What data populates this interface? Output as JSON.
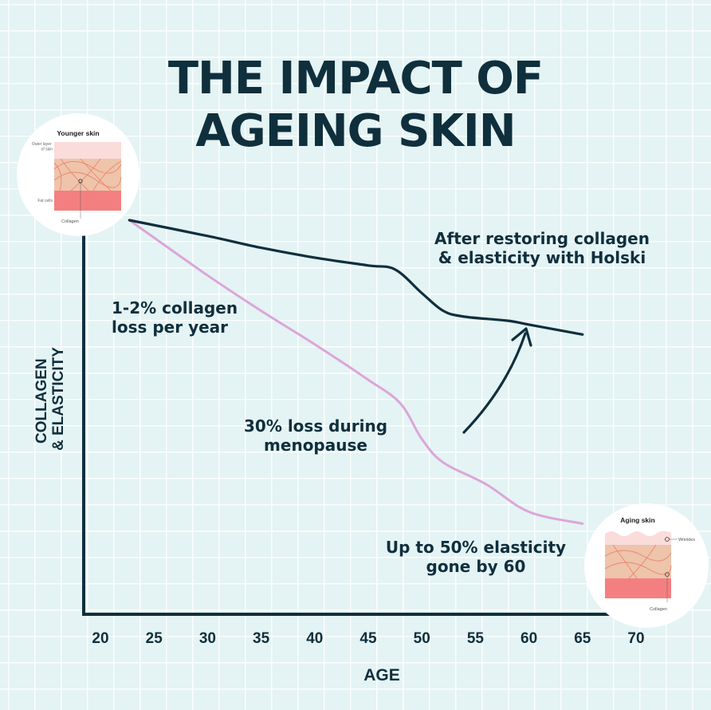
{
  "title_line1": "THE IMPACT OF",
  "title_line2": "AGEING SKIN",
  "colors": {
    "background": "#e4f3f3",
    "dark": "#0f2f3d",
    "pink_line": "#dba6d9",
    "skin_pink": "#fadcdb",
    "skin_tan": "#eec4aa",
    "fat_red": "#f47f80",
    "fiber": "#ea8570"
  },
  "chart_data": {
    "type": "line",
    "title": "",
    "xlabel": "AGE",
    "ylabel_lines": [
      "COLLAGEN",
      "& ELASTICITY"
    ],
    "xticks": [
      20,
      25,
      30,
      35,
      40,
      45,
      50,
      55,
      60,
      65,
      70
    ],
    "xlim": [
      20,
      70
    ],
    "ylim": [
      0,
      100
    ],
    "grid": true,
    "series": [
      {
        "color": "#0f2f3d",
        "points": [
          [
            22.7,
            100
          ],
          [
            30,
            96
          ],
          [
            35,
            93
          ],
          [
            40,
            90.5
          ],
          [
            45,
            88.5
          ],
          [
            47.5,
            87.5
          ],
          [
            50,
            81.5
          ],
          [
            52,
            77
          ],
          [
            54,
            75.5
          ],
          [
            58,
            74.5
          ],
          [
            60,
            73.5
          ],
          [
            65,
            71
          ]
        ],
        "annotation": [
          "After restoring collagen",
          "& elasticity with Holski"
        ]
      },
      {
        "color": "#dba6d9",
        "points": [
          [
            22.7,
            100
          ],
          [
            30,
            86
          ],
          [
            35,
            77
          ],
          [
            40,
            68.5
          ],
          [
            45,
            59.5
          ],
          [
            48,
            53.5
          ],
          [
            50,
            44.5
          ],
          [
            52,
            38.5
          ],
          [
            56,
            33
          ],
          [
            60,
            26
          ],
          [
            65,
            23
          ]
        ],
        "annotation": null
      }
    ],
    "annotations": [
      {
        "lines": [
          "1-2% collagen",
          "loss per year"
        ],
        "align": "start"
      },
      {
        "lines": [
          "30% loss during",
          "menopause"
        ],
        "align": "middle"
      },
      {
        "lines": [
          "Up to 50% elasticity",
          "gone by 60"
        ],
        "align": "middle"
      }
    ]
  },
  "younger_skin": {
    "heading": "Younger skin",
    "outer_layer_line1": "Outer layer",
    "outer_layer_line2": "of skin",
    "fat_cells": "Fat cells",
    "collagen": "Collagen"
  },
  "aging_skin": {
    "heading": "Aging skin",
    "wrinkles": "Wrinkles",
    "collagen": "Collagen"
  }
}
